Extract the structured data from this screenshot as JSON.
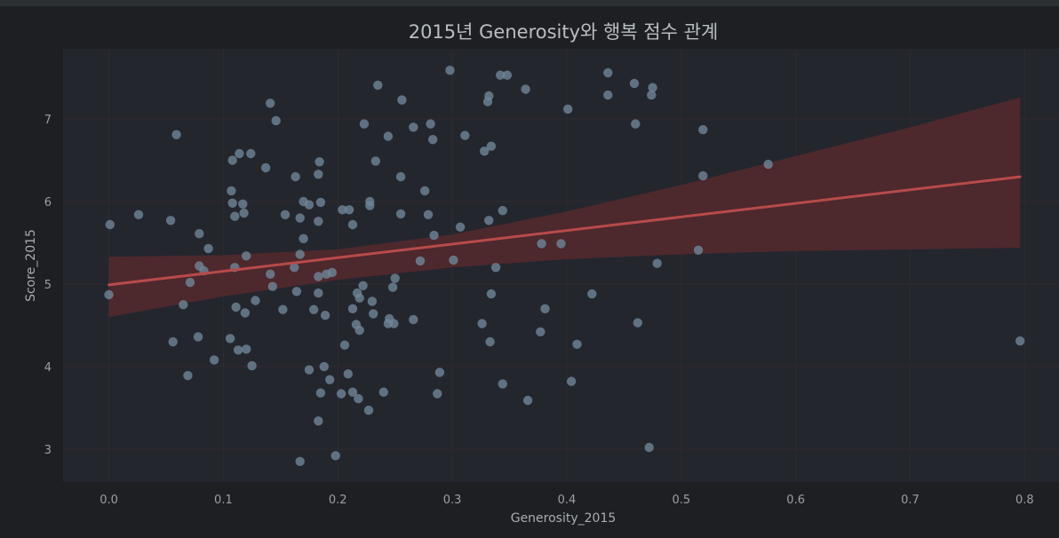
{
  "colors": {
    "background": "#1d1f22",
    "plot_background": "#24262e",
    "grid": "#2f2b2e",
    "points": "#6f8697",
    "regression_line": "#b84a4a",
    "confidence_band": "#5b2a2e",
    "text": "#9aa0a6"
  },
  "chart_data": {
    "type": "scatter",
    "title": "2015년 Generosity와 행복 점수 관계",
    "xlabel": "Generosity_2015",
    "ylabel": "Score_2015",
    "xlim": [
      -0.04,
      0.83
    ],
    "ylim": [
      2.6,
      7.85
    ],
    "xticks": [
      0.0,
      0.1,
      0.2,
      0.3,
      0.4,
      0.5,
      0.6,
      0.7,
      0.8
    ],
    "xtick_labels": [
      "0.0",
      "0.1",
      "0.2",
      "0.3",
      "0.4",
      "0.5",
      "0.6",
      "0.7",
      "0.8"
    ],
    "yticks": [
      3,
      4,
      5,
      6,
      7
    ],
    "ytick_labels": [
      "3",
      "4",
      "5",
      "6",
      "7"
    ],
    "grid": true,
    "points": [
      {
        "x": 0.298,
        "y": 7.59
      },
      {
        "x": 0.342,
        "y": 7.53
      },
      {
        "x": 0.348,
        "y": 7.53
      },
      {
        "x": 0.436,
        "y": 7.56
      },
      {
        "x": 0.235,
        "y": 7.41
      },
      {
        "x": 0.364,
        "y": 7.36
      },
      {
        "x": 0.459,
        "y": 7.43
      },
      {
        "x": 0.475,
        "y": 7.38
      },
      {
        "x": 0.332,
        "y": 7.28
      },
      {
        "x": 0.436,
        "y": 7.29
      },
      {
        "x": 0.474,
        "y": 7.29
      },
      {
        "x": 0.256,
        "y": 7.23
      },
      {
        "x": 0.331,
        "y": 7.21
      },
      {
        "x": 0.141,
        "y": 7.19
      },
      {
        "x": 0.401,
        "y": 7.12
      },
      {
        "x": 0.146,
        "y": 6.98
      },
      {
        "x": 0.223,
        "y": 6.94
      },
      {
        "x": 0.281,
        "y": 6.94
      },
      {
        "x": 0.46,
        "y": 6.94
      },
      {
        "x": 0.266,
        "y": 6.9
      },
      {
        "x": 0.519,
        "y": 6.87
      },
      {
        "x": 0.059,
        "y": 6.81
      },
      {
        "x": 0.311,
        "y": 6.8
      },
      {
        "x": 0.244,
        "y": 6.79
      },
      {
        "x": 0.283,
        "y": 6.75
      },
      {
        "x": 0.334,
        "y": 6.67
      },
      {
        "x": 0.328,
        "y": 6.61
      },
      {
        "x": 0.114,
        "y": 6.58
      },
      {
        "x": 0.124,
        "y": 6.58
      },
      {
        "x": 0.108,
        "y": 6.5
      },
      {
        "x": 0.233,
        "y": 6.49
      },
      {
        "x": 0.184,
        "y": 6.48
      },
      {
        "x": 0.576,
        "y": 6.45
      },
      {
        "x": 0.137,
        "y": 6.41
      },
      {
        "x": 0.183,
        "y": 6.33
      },
      {
        "x": 0.519,
        "y": 6.31
      },
      {
        "x": 0.163,
        "y": 6.3
      },
      {
        "x": 0.255,
        "y": 6.3
      },
      {
        "x": 0.107,
        "y": 6.13
      },
      {
        "x": 0.276,
        "y": 6.13
      },
      {
        "x": 0.17,
        "y": 6.0
      },
      {
        "x": 0.185,
        "y": 5.99
      },
      {
        "x": 0.228,
        "y": 6.0
      },
      {
        "x": 0.108,
        "y": 5.98
      },
      {
        "x": 0.117,
        "y": 5.97
      },
      {
        "x": 0.175,
        "y": 5.96
      },
      {
        "x": 0.228,
        "y": 5.95
      },
      {
        "x": 0.204,
        "y": 5.9
      },
      {
        "x": 0.21,
        "y": 5.9
      },
      {
        "x": 0.344,
        "y": 5.89
      },
      {
        "x": 0.118,
        "y": 5.86
      },
      {
        "x": 0.026,
        "y": 5.84
      },
      {
        "x": 0.154,
        "y": 5.84
      },
      {
        "x": 0.255,
        "y": 5.85
      },
      {
        "x": 0.279,
        "y": 5.84
      },
      {
        "x": 0.11,
        "y": 5.82
      },
      {
        "x": 0.167,
        "y": 5.8
      },
      {
        "x": 0.054,
        "y": 5.77
      },
      {
        "x": 0.183,
        "y": 5.76
      },
      {
        "x": 0.332,
        "y": 5.77
      },
      {
        "x": 0.001,
        "y": 5.72
      },
      {
        "x": 0.213,
        "y": 5.72
      },
      {
        "x": 0.307,
        "y": 5.69
      },
      {
        "x": 0.079,
        "y": 5.61
      },
      {
        "x": 0.284,
        "y": 5.59
      },
      {
        "x": 0.17,
        "y": 5.55
      },
      {
        "x": 0.378,
        "y": 5.49
      },
      {
        "x": 0.395,
        "y": 5.49
      },
      {
        "x": 0.087,
        "y": 5.43
      },
      {
        "x": 0.515,
        "y": 5.41
      },
      {
        "x": 0.12,
        "y": 5.34
      },
      {
        "x": 0.167,
        "y": 5.36
      },
      {
        "x": 0.272,
        "y": 5.28
      },
      {
        "x": 0.301,
        "y": 5.29
      },
      {
        "x": 0.479,
        "y": 5.25
      },
      {
        "x": 0.079,
        "y": 5.22
      },
      {
        "x": 0.11,
        "y": 5.2
      },
      {
        "x": 0.162,
        "y": 5.2
      },
      {
        "x": 0.338,
        "y": 5.2
      },
      {
        "x": 0.083,
        "y": 5.16
      },
      {
        "x": 0.195,
        "y": 5.14
      },
      {
        "x": 0.141,
        "y": 5.12
      },
      {
        "x": 0.19,
        "y": 5.12
      },
      {
        "x": 0.183,
        "y": 5.09
      },
      {
        "x": 0.25,
        "y": 5.07
      },
      {
        "x": 0.071,
        "y": 5.02
      },
      {
        "x": 0.143,
        "y": 4.97
      },
      {
        "x": 0.222,
        "y": 4.98
      },
      {
        "x": 0.248,
        "y": 4.96
      },
      {
        "x": 0.0,
        "y": 4.87
      },
      {
        "x": 0.164,
        "y": 4.91
      },
      {
        "x": 0.183,
        "y": 4.89
      },
      {
        "x": 0.217,
        "y": 4.89
      },
      {
        "x": 0.334,
        "y": 4.88
      },
      {
        "x": 0.422,
        "y": 4.88
      },
      {
        "x": 0.219,
        "y": 4.83
      },
      {
        "x": 0.128,
        "y": 4.8
      },
      {
        "x": 0.23,
        "y": 4.79
      },
      {
        "x": 0.065,
        "y": 4.75
      },
      {
        "x": 0.111,
        "y": 4.72
      },
      {
        "x": 0.152,
        "y": 4.69
      },
      {
        "x": 0.179,
        "y": 4.69
      },
      {
        "x": 0.213,
        "y": 4.7
      },
      {
        "x": 0.381,
        "y": 4.7
      },
      {
        "x": 0.119,
        "y": 4.65
      },
      {
        "x": 0.189,
        "y": 4.62
      },
      {
        "x": 0.231,
        "y": 4.64
      },
      {
        "x": 0.245,
        "y": 4.58
      },
      {
        "x": 0.266,
        "y": 4.57
      },
      {
        "x": 0.462,
        "y": 4.53
      },
      {
        "x": 0.216,
        "y": 4.51
      },
      {
        "x": 0.244,
        "y": 4.52
      },
      {
        "x": 0.249,
        "y": 4.52
      },
      {
        "x": 0.326,
        "y": 4.52
      },
      {
        "x": 0.219,
        "y": 4.44
      },
      {
        "x": 0.377,
        "y": 4.42
      },
      {
        "x": 0.078,
        "y": 4.36
      },
      {
        "x": 0.106,
        "y": 4.34
      },
      {
        "x": 0.056,
        "y": 4.3
      },
      {
        "x": 0.333,
        "y": 4.3
      },
      {
        "x": 0.796,
        "y": 4.31
      },
      {
        "x": 0.409,
        "y": 4.27
      },
      {
        "x": 0.206,
        "y": 4.26
      },
      {
        "x": 0.113,
        "y": 4.2
      },
      {
        "x": 0.12,
        "y": 4.21
      },
      {
        "x": 0.092,
        "y": 4.08
      },
      {
        "x": 0.125,
        "y": 4.01
      },
      {
        "x": 0.188,
        "y": 4.0
      },
      {
        "x": 0.175,
        "y": 3.96
      },
      {
        "x": 0.289,
        "y": 3.93
      },
      {
        "x": 0.209,
        "y": 3.91
      },
      {
        "x": 0.069,
        "y": 3.89
      },
      {
        "x": 0.193,
        "y": 3.84
      },
      {
        "x": 0.404,
        "y": 3.82
      },
      {
        "x": 0.344,
        "y": 3.79
      },
      {
        "x": 0.213,
        "y": 3.69
      },
      {
        "x": 0.185,
        "y": 3.68
      },
      {
        "x": 0.203,
        "y": 3.67
      },
      {
        "x": 0.24,
        "y": 3.69
      },
      {
        "x": 0.287,
        "y": 3.67
      },
      {
        "x": 0.218,
        "y": 3.61
      },
      {
        "x": 0.366,
        "y": 3.59
      },
      {
        "x": 0.227,
        "y": 3.47
      },
      {
        "x": 0.183,
        "y": 3.34
      },
      {
        "x": 0.472,
        "y": 3.02
      },
      {
        "x": 0.198,
        "y": 2.92
      },
      {
        "x": 0.167,
        "y": 2.85
      }
    ],
    "regression": {
      "x": [
        0.0,
        0.796
      ],
      "y": [
        4.99,
        6.3
      ]
    },
    "confidence_band": {
      "x": [
        0.0,
        0.1,
        0.2,
        0.3,
        0.4,
        0.5,
        0.6,
        0.7,
        0.796
      ],
      "upper": [
        5.33,
        5.35,
        5.42,
        5.6,
        5.88,
        6.2,
        6.55,
        6.9,
        7.26
      ],
      "lower": [
        4.6,
        4.85,
        5.05,
        5.2,
        5.3,
        5.36,
        5.4,
        5.42,
        5.44
      ]
    }
  }
}
